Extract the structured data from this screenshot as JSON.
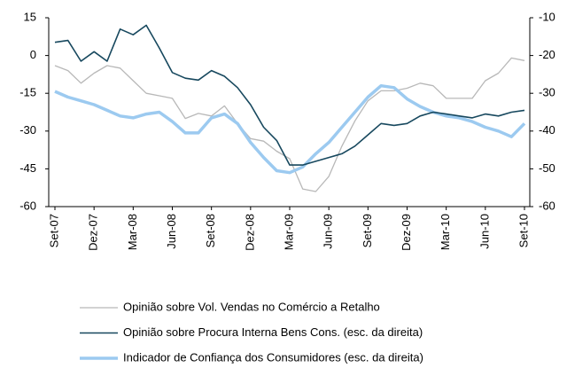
{
  "chart_data": {
    "type": "line",
    "categories": [
      "Set-07",
      null,
      null,
      "Dez-07",
      null,
      null,
      "Mar-08",
      null,
      null,
      "Jun-08",
      null,
      null,
      "Set-08",
      null,
      null,
      "Dez-08",
      null,
      null,
      "Mar-09",
      null,
      null,
      "Jun-09",
      null,
      null,
      "Set-09",
      null,
      null,
      "Dez-09",
      null,
      null,
      "Mar-10",
      null,
      null,
      "Jun-10",
      null,
      null,
      "Set-10"
    ],
    "ylim": [
      -60,
      15
    ],
    "yticks": [
      15,
      0,
      -15,
      -30,
      -45,
      -60
    ],
    "y2lim": [
      -60,
      -10
    ],
    "y2ticks": [
      -10,
      -20,
      -30,
      -40,
      -50,
      -60
    ],
    "series": [
      {
        "name": "Opinião sobre Vol. Vendas no Comércio a Retalho",
        "color": "#b8b8b8",
        "width": 1.3,
        "values": [
          -4,
          -6,
          -11,
          -7,
          -4,
          -5,
          -10,
          -15,
          -16,
          -17,
          -25,
          -23,
          -24,
          -20,
          -27,
          -33,
          -34,
          -38,
          -41,
          -53,
          -54,
          -48,
          -36,
          -26,
          -18,
          -14,
          -14,
          -13,
          -11,
          -12,
          -17,
          -17,
          -17,
          -10,
          -7,
          -1,
          -2
        ]
      },
      {
        "name": "Opinião sobre Procura Interna Bens Cons. (esc. da direita)",
        "color": "#17485e",
        "width": 1.6,
        "axis": "y2",
        "values": [
          -16.5,
          -16,
          -21.5,
          -19,
          -21.5,
          -13,
          -14.5,
          -12,
          -18,
          -24.5,
          -26,
          -26.5,
          -24,
          -25.5,
          -28.5,
          -33,
          -39,
          -42.5,
          -49,
          -49,
          -48,
          -47,
          -46,
          -44,
          -41,
          -38,
          -38.5,
          -38,
          -36,
          -35,
          -35.5,
          -36,
          -36.5,
          -35.5,
          -36,
          -35,
          -34.5
        ]
      },
      {
        "name": "Indicador de Confiança dos Consumidores (esc. da direita)",
        "color": "#9ccaf0",
        "width": 3.5,
        "axis": "y2",
        "values": [
          -29.5,
          -31,
          -32,
          -33,
          -34.5,
          -36,
          -36.5,
          -35.5,
          -35,
          -37.5,
          -40.5,
          -40.5,
          -36.5,
          -35.5,
          -38,
          -43,
          -47,
          -50.5,
          -51,
          -49.5,
          -46,
          -43,
          -39,
          -35,
          -31,
          -28,
          -28.5,
          -31.5,
          -33.5,
          -35,
          -36,
          -36.5,
          -37.5,
          -39,
          -40,
          -41.5,
          -38
        ]
      }
    ]
  }
}
